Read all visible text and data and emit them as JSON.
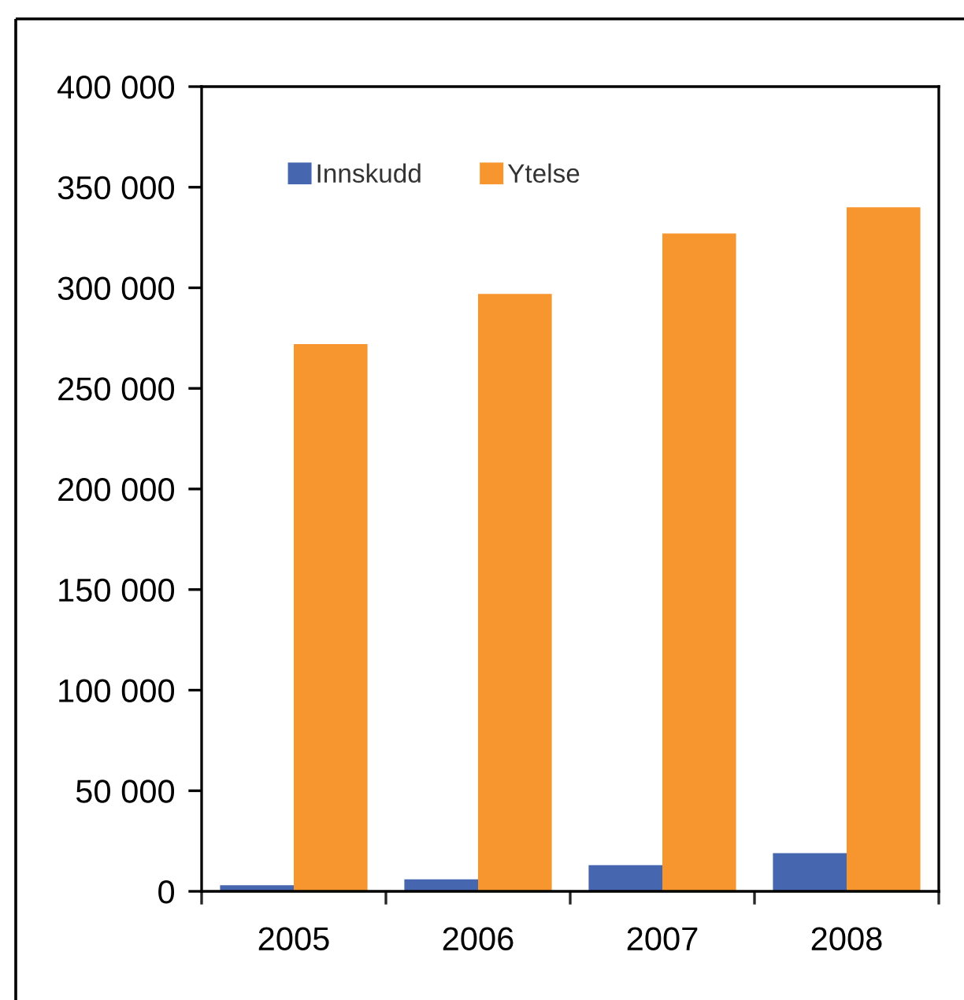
{
  "chart_data": {
    "type": "bar",
    "categories": [
      "2005",
      "2006",
      "2007",
      "2008"
    ],
    "series": [
      {
        "name": "Innskudd",
        "color": "#4666af",
        "values": [
          3000,
          6000,
          13000,
          19000
        ]
      },
      {
        "name": "Ytelse",
        "color": "#f7962e",
        "values": [
          272000,
          297000,
          327000,
          340000
        ]
      }
    ],
    "ylim": [
      0,
      400000
    ],
    "yticks": [
      0,
      {
        "value": 50000,
        "label": "50 000"
      },
      {
        "value": 100000,
        "label": "100 000"
      },
      {
        "value": 150000,
        "label": "150 000"
      },
      {
        "value": 200000,
        "label": "200 000"
      },
      {
        "value": 250000,
        "label": "250 000"
      },
      {
        "value": 300000,
        "label": "300 000"
      },
      {
        "value": 350000,
        "label": "350 000"
      },
      {
        "value": 400000,
        "label": "400 000"
      }
    ],
    "grid": false,
    "legend": "top left"
  }
}
